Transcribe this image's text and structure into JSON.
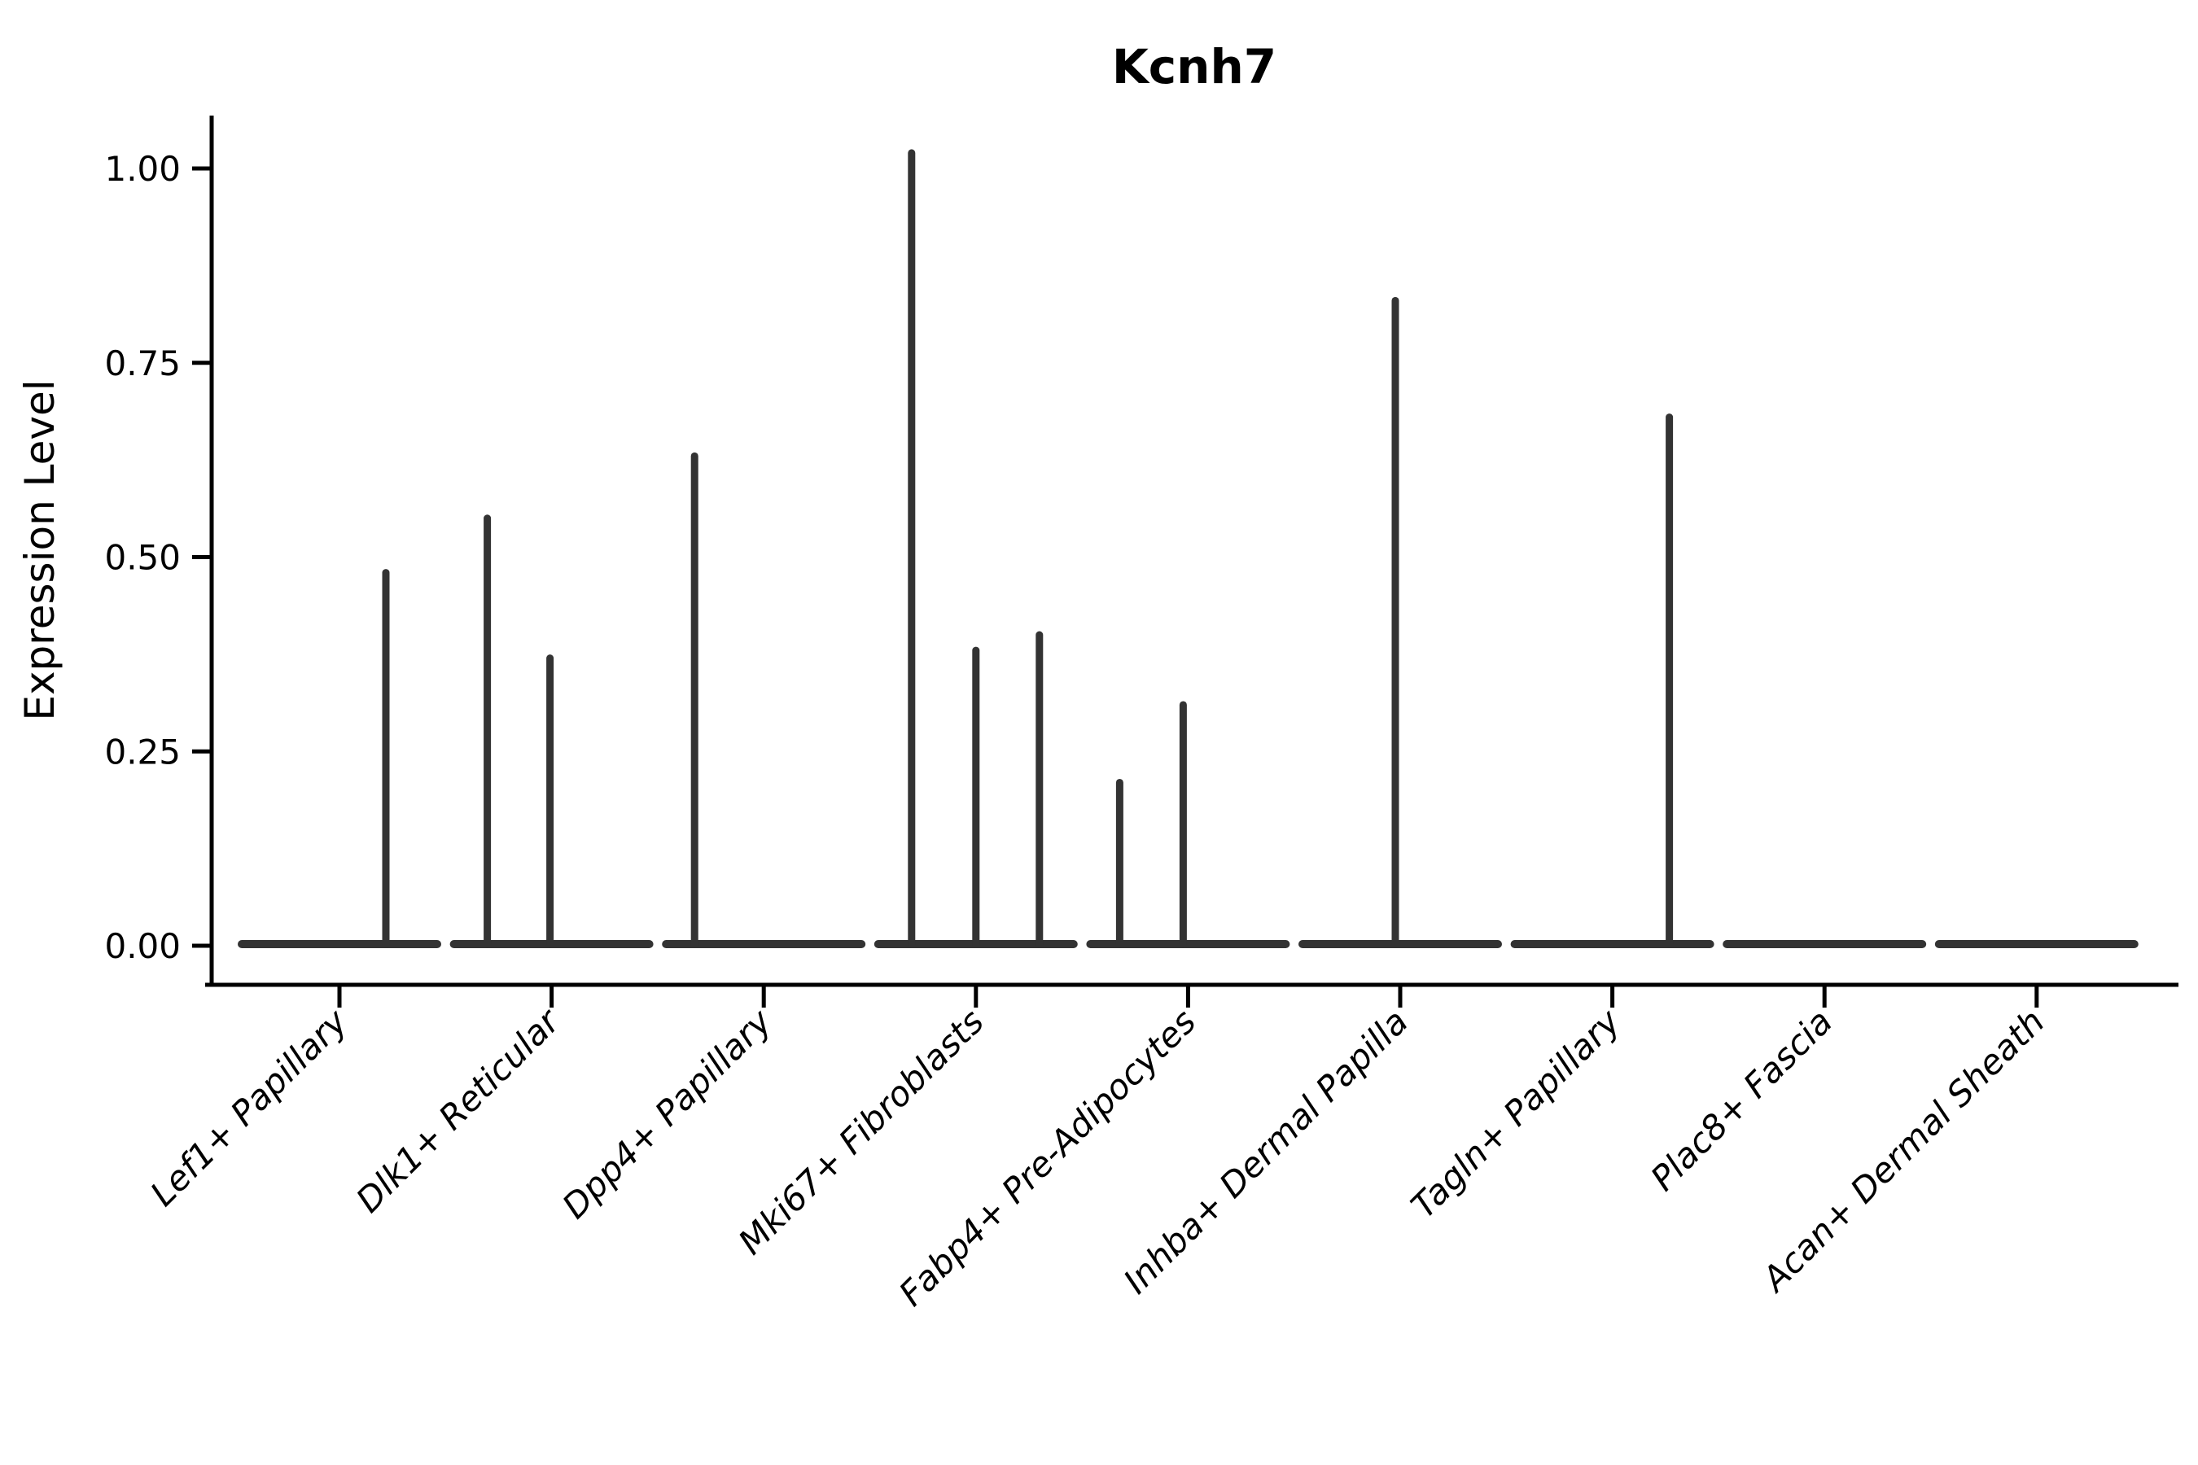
{
  "chart_data": {
    "type": "violin",
    "title": "Kcnh7",
    "ylabel": "Expression Level",
    "xlabel": "",
    "grid": false,
    "legend": null,
    "ylim": [
      -0.05,
      1.07
    ],
    "ytick_values": [
      0,
      0.25,
      0.5,
      0.75,
      1.0
    ],
    "ytick_labels": [
      "0.00",
      "0.25",
      "0.50",
      "0.75",
      "1.00"
    ],
    "categories": [
      "Lef1+ Papillary",
      "Dlk1+ Reticular",
      "Dpp4+ Papillary",
      "Mki67+ Fibroblasts",
      "Fabp4+ Pre-Adipocytes",
      "Inhba+ Dermal Papilla",
      "Tagln+ Papillary",
      "Plac8+ Fascia",
      "Acan+ Dermal Sheath"
    ],
    "series": [
      {
        "category": "Lef1+ Papillary",
        "baseline_value": 0,
        "spikes": [
          {
            "dx": 57,
            "value": 0.48
          }
        ]
      },
      {
        "category": "Dlk1+ Reticular",
        "baseline_value": 0,
        "spikes": [
          {
            "dx": -79,
            "value": 0.55
          },
          {
            "dx": -2,
            "value": 0.37
          }
        ]
      },
      {
        "category": "Dpp4+ Papillary",
        "baseline_value": 0,
        "spikes": [
          {
            "dx": -85,
            "value": 0.63
          }
        ]
      },
      {
        "category": "Mki67+ Fibroblasts",
        "baseline_value": 0,
        "spikes": [
          {
            "dx": -79,
            "value": 1.02
          },
          {
            "dx": 0,
            "value": 0.38
          },
          {
            "dx": 78,
            "value": 0.4
          }
        ]
      },
      {
        "category": "Fabp4+ Pre-Adipocytes",
        "baseline_value": 0,
        "spikes": [
          {
            "dx": -84,
            "value": 0.21
          },
          {
            "dx": -6,
            "value": 0.31
          }
        ]
      },
      {
        "category": "Inhba+ Dermal Papilla",
        "baseline_value": 0,
        "spikes": [
          {
            "dx": -6,
            "value": 0.83
          }
        ]
      },
      {
        "category": "Tagln+ Papillary",
        "baseline_value": 0,
        "spikes": [
          {
            "dx": 70,
            "value": 0.68
          }
        ]
      },
      {
        "category": "Plac8+ Fascia",
        "baseline_value": 0,
        "spikes": []
      },
      {
        "category": "Acan+ Dermal Sheath",
        "baseline_value": 0,
        "spikes": []
      }
    ],
    "violin_color": "#333333",
    "axis_color": "#000000"
  }
}
